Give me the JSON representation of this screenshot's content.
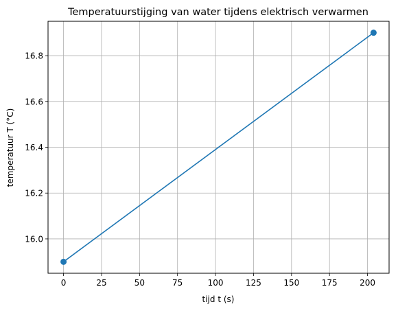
{
  "chart_data": {
    "type": "line",
    "title": "Temperatuurstijging van water tijdens elektrisch verwarmen",
    "xlabel": "tijd t (s)",
    "ylabel": "temperatuur T (°C)",
    "x": [
      0,
      204
    ],
    "series": [
      {
        "values": [
          15.9,
          16.9
        ],
        "color": "#1f77b4",
        "marker": "circle"
      }
    ],
    "xlim": [
      -10.2,
      214.2
    ],
    "ylim": [
      15.85,
      16.95
    ],
    "xticks": [
      0,
      25,
      50,
      75,
      100,
      125,
      150,
      175,
      200
    ],
    "yticks": [
      16.0,
      16.2,
      16.4,
      16.6,
      16.8
    ],
    "xtick_labels": [
      "0",
      "25",
      "50",
      "75",
      "100",
      "125",
      "150",
      "175",
      "200"
    ],
    "ytick_labels": [
      "16.0",
      "16.2",
      "16.4",
      "16.6",
      "16.8"
    ],
    "grid": true
  }
}
